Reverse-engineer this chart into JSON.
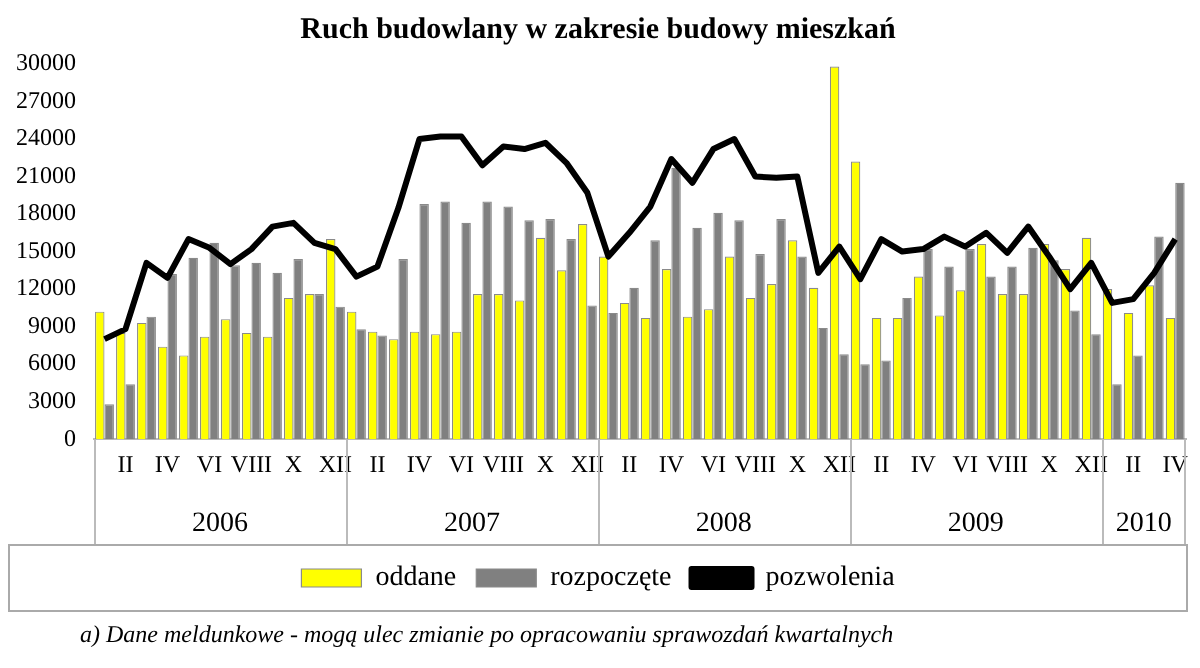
{
  "chart_data": {
    "type": "bar",
    "title": "Ruch budowlany w zakresie budowy mieszkań",
    "categories": [
      null,
      "II",
      null,
      "IV",
      null,
      "VI",
      null,
      "VIII",
      null,
      "X",
      null,
      "XII",
      null,
      "II",
      null,
      "IV",
      null,
      "VI",
      null,
      "VIII",
      null,
      "X",
      null,
      "XII",
      null,
      "II",
      null,
      "IV",
      null,
      "VI",
      null,
      "VIII",
      null,
      "X",
      null,
      "XII",
      null,
      "II",
      null,
      "IV",
      null,
      "VI",
      null,
      "VIII",
      null,
      "X",
      null,
      "XII",
      null,
      "II",
      null,
      "IV"
    ],
    "series": [
      {
        "name": "oddane",
        "color": "#ffff00",
        "values": [
          10200,
          8500,
          9300,
          7400,
          6700,
          8200,
          9600,
          8500,
          8200,
          11300,
          11600,
          16000,
          10200,
          8600,
          8000,
          8600,
          8400,
          8600,
          11600,
          11600,
          11100,
          16100,
          13500,
          17200,
          14600,
          10900,
          9700,
          13600,
          9800,
          10400,
          14600,
          11300,
          12400,
          15900,
          12100,
          29800,
          22200,
          9700,
          9700,
          13000,
          9900,
          11900,
          15600,
          11600,
          11600,
          15600,
          13600,
          16100,
          12000,
          10100,
          12300,
          9700
        ]
      },
      {
        "name": "rozpoczęte",
        "color": "#808080",
        "values": [
          2800,
          4400,
          9800,
          13200,
          14500,
          15700,
          13900,
          14100,
          13300,
          14400,
          11600,
          10600,
          8800,
          8300,
          14400,
          18800,
          19000,
          17300,
          19000,
          18600,
          17500,
          17600,
          16000,
          10700,
          10100,
          12100,
          15900,
          21700,
          16900,
          18100,
          17500,
          14800,
          17600,
          14600,
          8900,
          6800,
          6000,
          6300,
          11300,
          15200,
          13800,
          15200,
          13000,
          13800,
          15300,
          14300,
          10300,
          8400,
          4400,
          6700,
          16200,
          20500
        ]
      },
      {
        "name": "pozwolenia",
        "type": "line",
        "color": "#000000",
        "values": [
          8000,
          8800,
          14100,
          12900,
          16000,
          15300,
          14000,
          15200,
          17000,
          17300,
          15700,
          15200,
          13000,
          13800,
          18500,
          24000,
          24200,
          24200,
          21900,
          23400,
          23200,
          23700,
          22100,
          19700,
          14600,
          16500,
          18600,
          22400,
          20500,
          23200,
          24000,
          21000,
          20900,
          21000,
          13300,
          15400,
          12800,
          16000,
          15000,
          15200,
          16200,
          15400,
          16500,
          14900,
          17000,
          14600,
          12000,
          14100,
          10900,
          11200,
          13300,
          16000
        ]
      }
    ],
    "ylim": [
      0,
      30000
    ],
    "yticks": [
      0,
      3000,
      6000,
      9000,
      12000,
      15000,
      18000,
      21000,
      24000,
      27000,
      30000
    ],
    "grid": false,
    "legend": "bottom",
    "annotations": [
      "2006",
      "2007",
      "2008",
      "2009",
      "2010",
      "a)    Dane meldunkowe - mogą ulec zmianie po opracowaniu sprawozdań kwartalnych"
    ]
  }
}
